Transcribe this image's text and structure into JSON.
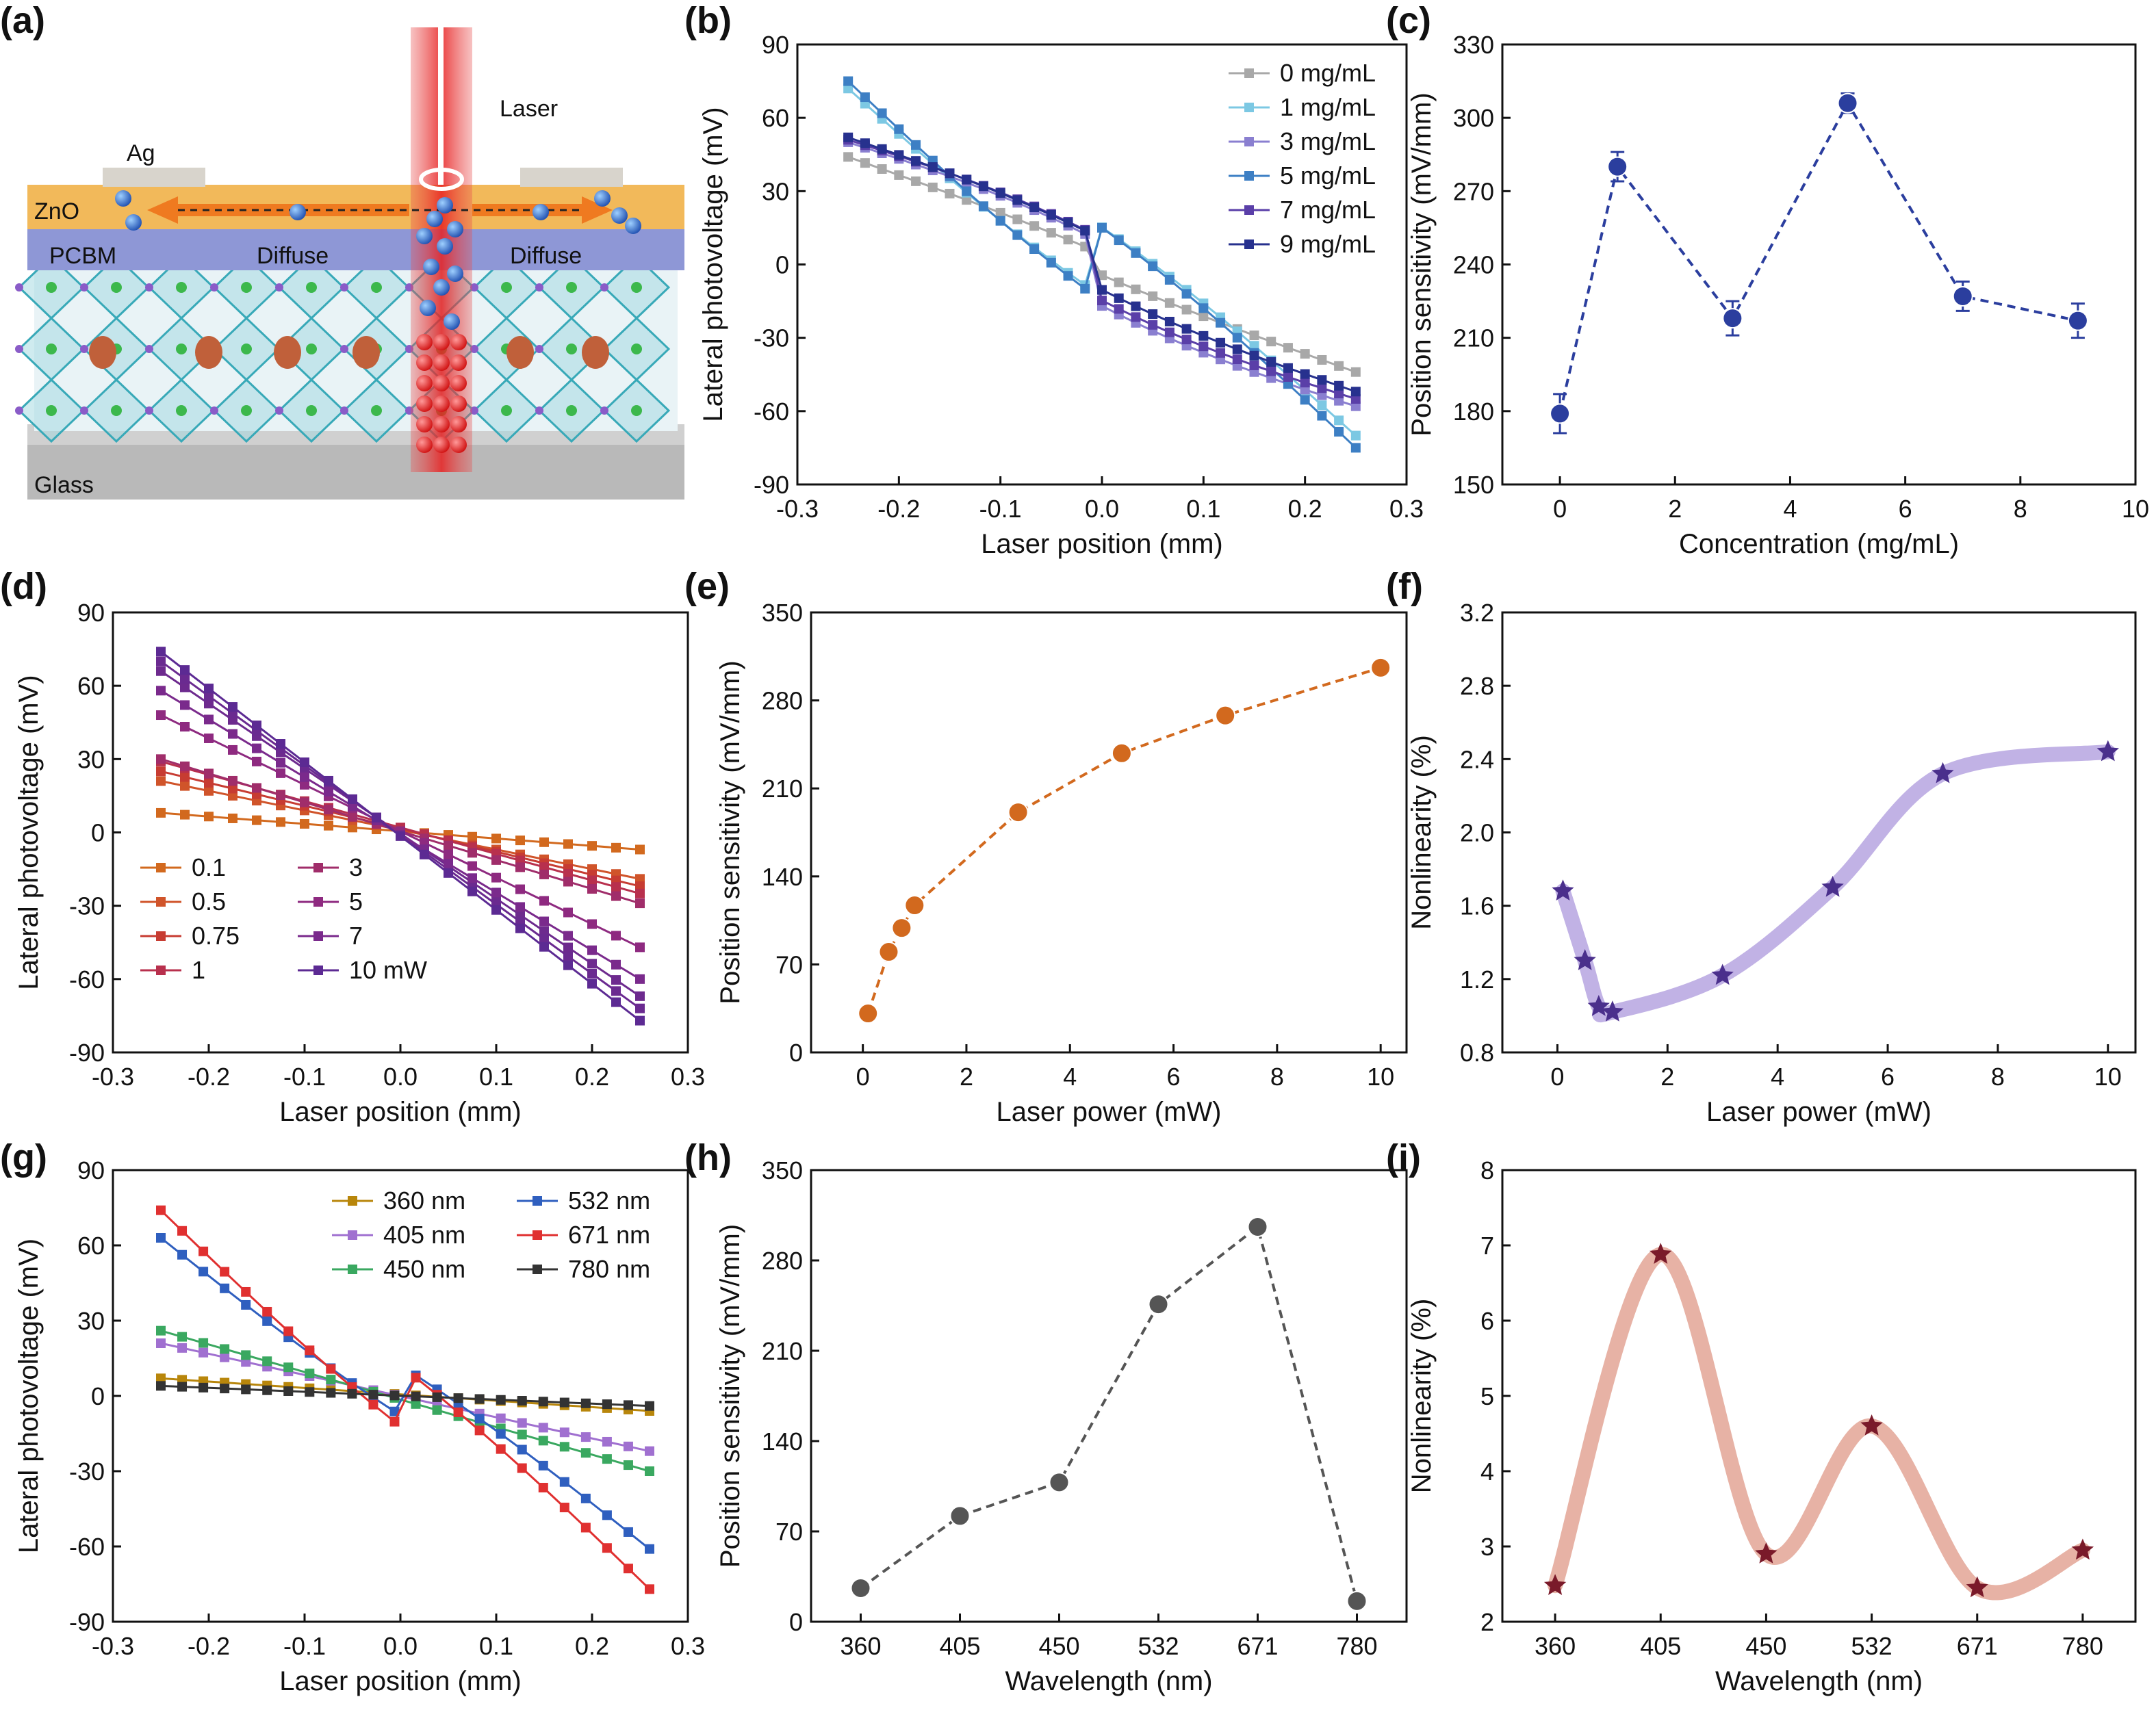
{
  "figure": {
    "panel_labels": [
      "(a)",
      "(b)",
      "(c)",
      "(d)",
      "(e)",
      "(f)",
      "(g)",
      "(h)",
      "(i)"
    ]
  },
  "schematic": {
    "label": "(a)",
    "layers": [
      "Ag",
      "ZnO",
      "PCBM",
      "Glass"
    ],
    "annotations": [
      "Laser",
      "Diffuse",
      "Diffuse"
    ]
  },
  "chart_data": [
    {
      "panel": "b",
      "type": "line",
      "xlabel": "Laser position (mm)",
      "ylabel": "Lateral photovoltage (mV)",
      "xlim": [
        -0.3,
        0.3
      ],
      "ylim": [
        -90,
        90
      ],
      "xticks": [
        -0.3,
        -0.2,
        -0.1,
        0.0,
        0.1,
        0.2,
        0.3
      ],
      "xtick_labels": [
        "-0.3",
        "-0.2",
        "-0.1",
        "0.0",
        "0.1",
        "0.2",
        "0.3"
      ],
      "yticks": [
        -90,
        -60,
        -30,
        0,
        30,
        60,
        90
      ],
      "legend_position": "top-right",
      "marker": "square",
      "x_start": -0.25,
      "x_end": 0.25,
      "n_points": 31,
      "series": [
        {
          "name": "0 mg/mL",
          "color": "#a8a8a8",
          "start": 44,
          "end": -44,
          "bend": 0.05
        },
        {
          "name": "1 mg/mL",
          "color": "#7cc8e3",
          "start": 72,
          "end": -70,
          "bend": -0.1
        },
        {
          "name": "3 mg/mL",
          "color": "#8a7fd0",
          "start": 50,
          "end": -58,
          "bend": 0.12
        },
        {
          "name": "5 mg/mL",
          "color": "#3d7fc4",
          "start": 75,
          "end": -75,
          "bend": -0.1
        },
        {
          "name": "7 mg/mL",
          "color": "#5a3fa8",
          "start": 51,
          "end": -55,
          "bend": 0.12
        },
        {
          "name": "9 mg/mL",
          "color": "#27318e",
          "start": 52,
          "end": -52,
          "bend": 0.1
        }
      ]
    },
    {
      "panel": "c",
      "type": "scatter",
      "xlabel": "Concentration (mg/mL)",
      "ylabel": "Position sensitivity (mV/mm)",
      "xlim": [
        -1,
        10
      ],
      "ylim": [
        150,
        330
      ],
      "xticks": [
        0,
        2,
        4,
        6,
        8,
        10
      ],
      "yticks": [
        150,
        180,
        210,
        240,
        270,
        300,
        330
      ],
      "color": "#2b3e9e",
      "connector": "dashed",
      "x": [
        0,
        1,
        3,
        5,
        7,
        9
      ],
      "y": [
        179,
        280,
        218,
        306,
        227,
        217
      ],
      "yerr": [
        8,
        6,
        7,
        4,
        6,
        7
      ]
    },
    {
      "panel": "d",
      "type": "line",
      "xlabel": "Laser position (mm)",
      "ylabel": "Lateral photovoltage (mV)",
      "xlim": [
        -0.3,
        0.3
      ],
      "ylim": [
        -90,
        90
      ],
      "xticks": [
        -0.3,
        -0.2,
        -0.1,
        0.0,
        0.1,
        0.2,
        0.3
      ],
      "xtick_labels": [
        "-0.3",
        "-0.2",
        "-0.1",
        "0.0",
        "0.1",
        "0.2",
        "0.3"
      ],
      "yticks": [
        -90,
        -60,
        -30,
        0,
        30,
        60,
        90
      ],
      "legend_position": "bottom-left",
      "marker": "square",
      "x_start": -0.25,
      "x_end": 0.25,
      "n_points": 21,
      "series": [
        {
          "name": "0.1",
          "color": "#d2691e",
          "start": 8,
          "end": -7,
          "bend": 0
        },
        {
          "name": "0.5",
          "color": "#d0542a",
          "start": 21,
          "end": -19,
          "bend": 0
        },
        {
          "name": "0.75",
          "color": "#c73c32",
          "start": 25,
          "end": -22,
          "bend": 0
        },
        {
          "name": "1",
          "color": "#b8304d",
          "start": 29,
          "end": -25,
          "bend": 0
        },
        {
          "name": "3",
          "color": "#a02d6a",
          "start": 30,
          "end": -29,
          "bend": 0
        },
        {
          "name": "5",
          "color": "#8e2a80",
          "start": 48,
          "end": -47,
          "bend": 0
        },
        {
          "name": "7",
          "color": "#7a2a8c",
          "start": 58,
          "end": -60,
          "bend": 0
        },
        {
          "name": "10 mW",
          "color": "#5c2a93",
          "start": 74,
          "end": -77,
          "bend": 0
        }
      ],
      "extra_series_lines": [
        {
          "color": "#6d2a8e",
          "start": 66,
          "end": -67
        },
        {
          "color": "#6a2a90",
          "start": 70,
          "end": -72
        }
      ]
    },
    {
      "panel": "e",
      "type": "scatter",
      "xlabel": "Laser power (mW)",
      "ylabel": "Position sensitivity (mV/mm)",
      "xlim": [
        -1,
        10.5
      ],
      "ylim": [
        0,
        350
      ],
      "xticks": [
        0,
        2,
        4,
        6,
        8,
        10
      ],
      "yticks": [
        0,
        70,
        140,
        210,
        280,
        350
      ],
      "color": "#d2691e",
      "connector": "dashed",
      "x": [
        0.1,
        0.5,
        0.75,
        1,
        3,
        5,
        7,
        10
      ],
      "y": [
        31,
        80,
        99,
        117,
        191,
        238,
        268,
        306
      ]
    },
    {
      "panel": "f",
      "type": "scatter",
      "xlabel": "Laser power (mW)",
      "ylabel": "Nonlinearity (%)",
      "xlim": [
        -1,
        10.5
      ],
      "ylim": [
        0.8,
        3.2
      ],
      "xticks": [
        0,
        2,
        4,
        6,
        8,
        10
      ],
      "yticks": [
        0.8,
        1.2,
        1.6,
        2.0,
        2.4,
        2.8,
        3.2
      ],
      "ytick_labels": [
        "0.8",
        "1.2",
        "1.6",
        "2.0",
        "2.4",
        "2.8",
        "3.2"
      ],
      "color": "#4a2f8c",
      "band_color": "#b6a4e0",
      "marker": "star",
      "connector": "smooth-band",
      "x": [
        0.1,
        0.5,
        0.75,
        1,
        3,
        5,
        7,
        10
      ],
      "y": [
        1.68,
        1.3,
        1.05,
        1.02,
        1.22,
        1.7,
        2.32,
        2.44
      ]
    },
    {
      "panel": "g",
      "type": "line",
      "xlabel": "Laser position (mm)",
      "ylabel": "Lateral photovoltage (mV)",
      "xlim": [
        -0.3,
        0.3
      ],
      "ylim": [
        -90,
        90
      ],
      "xticks": [
        -0.3,
        -0.2,
        -0.1,
        0.0,
        0.1,
        0.2,
        0.3
      ],
      "xtick_labels": [
        "-0.3",
        "-0.2",
        "-0.1",
        "0.0",
        "0.1",
        "0.2",
        "0.3"
      ],
      "yticks": [
        -90,
        -60,
        -30,
        0,
        30,
        60,
        90
      ],
      "legend_position": "top-right",
      "marker": "square",
      "x_start": -0.25,
      "x_end": 0.26,
      "n_points": 24,
      "series": [
        {
          "name": "360 nm",
          "color": "#b8860b",
          "start": 7,
          "end": -6,
          "bend": 0
        },
        {
          "name": "405 nm",
          "color": "#a070d0",
          "start": 21,
          "end": -22,
          "bend": 0
        },
        {
          "name": "450 nm",
          "color": "#3aa860",
          "start": 26,
          "end": -30,
          "bend": 0
        },
        {
          "name": "532 nm",
          "color": "#2f5fbf",
          "start": 63,
          "end": -61,
          "bend": -0.08
        },
        {
          "name": "671 nm",
          "color": "#e03030",
          "start": 74,
          "end": -77,
          "bend": -0.08
        },
        {
          "name": "780 nm",
          "color": "#333333",
          "start": 4,
          "end": -4,
          "bend": 0
        }
      ]
    },
    {
      "panel": "h",
      "type": "scatter",
      "xlabel": "Wavelength (nm)",
      "ylabel": "Position sensitivity (mV/mm)",
      "categories": [
        "360",
        "405",
        "450",
        "532",
        "671",
        "780"
      ],
      "ylim": [
        0,
        350
      ],
      "yticks": [
        0,
        70,
        140,
        210,
        280,
        350
      ],
      "color": "#555555",
      "connector": "dashed",
      "y": [
        26,
        82,
        108,
        246,
        306,
        16
      ]
    },
    {
      "panel": "i",
      "type": "scatter",
      "xlabel": "Wavelength (nm)",
      "ylabel": "Nonlinearity (%)",
      "categories": [
        "360",
        "405",
        "450",
        "532",
        "671",
        "780"
      ],
      "ylim": [
        2,
        8
      ],
      "yticks": [
        2,
        3,
        4,
        5,
        6,
        7,
        8
      ],
      "color": "#7a1a2a",
      "band_color": "#e3a595",
      "marker": "star",
      "connector": "smooth-band",
      "y": [
        2.48,
        6.88,
        2.9,
        4.6,
        2.45,
        2.95
      ]
    }
  ]
}
